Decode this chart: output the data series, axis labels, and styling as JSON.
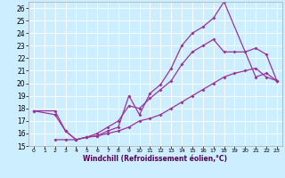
{
  "xlabel": "Windchill (Refroidissement éolien,°C)",
  "bg_color": "#cceeff",
  "line_color": "#993399",
  "xlim": [
    -0.5,
    23.5
  ],
  "ylim": [
    15,
    26.5
  ],
  "xticks": [
    0,
    1,
    2,
    3,
    4,
    5,
    6,
    7,
    8,
    9,
    10,
    11,
    12,
    13,
    14,
    15,
    16,
    17,
    18,
    19,
    20,
    21,
    22,
    23
  ],
  "yticks": [
    15,
    16,
    17,
    18,
    19,
    20,
    21,
    22,
    23,
    24,
    25,
    26
  ],
  "s1x": [
    0,
    2,
    3,
    4,
    5,
    6,
    7,
    8,
    9,
    10,
    11,
    12,
    13,
    14,
    15,
    16,
    17,
    18,
    21,
    22,
    23
  ],
  "s1y": [
    17.8,
    17.8,
    16.2,
    15.5,
    15.7,
    15.8,
    16.2,
    16.5,
    19.0,
    17.5,
    19.2,
    19.9,
    21.2,
    23.0,
    24.0,
    24.5,
    25.2,
    26.5,
    20.5,
    20.8,
    20.2
  ],
  "s2x": [
    0,
    2,
    3,
    4,
    5,
    6,
    7,
    8,
    9,
    10,
    11,
    12,
    13,
    14,
    15,
    16,
    17,
    18,
    19,
    20,
    21,
    22,
    23
  ],
  "s2y": [
    17.8,
    17.5,
    16.2,
    15.5,
    15.7,
    16.0,
    16.5,
    17.0,
    18.2,
    18.0,
    18.8,
    19.5,
    20.2,
    21.5,
    22.5,
    23.0,
    23.5,
    22.5,
    22.5,
    22.5,
    22.8,
    22.3,
    20.2
  ],
  "s3x": [
    2,
    3,
    4,
    5,
    6,
    7,
    8,
    9,
    10,
    11,
    12,
    13,
    14,
    15,
    16,
    17,
    18,
    19,
    20,
    21,
    22,
    23
  ],
  "s3y": [
    15.5,
    15.5,
    15.5,
    15.7,
    15.8,
    16.0,
    16.2,
    16.5,
    17.0,
    17.2,
    17.5,
    18.0,
    18.5,
    19.0,
    19.5,
    20.0,
    20.5,
    20.8,
    21.0,
    21.2,
    20.5,
    20.2
  ]
}
